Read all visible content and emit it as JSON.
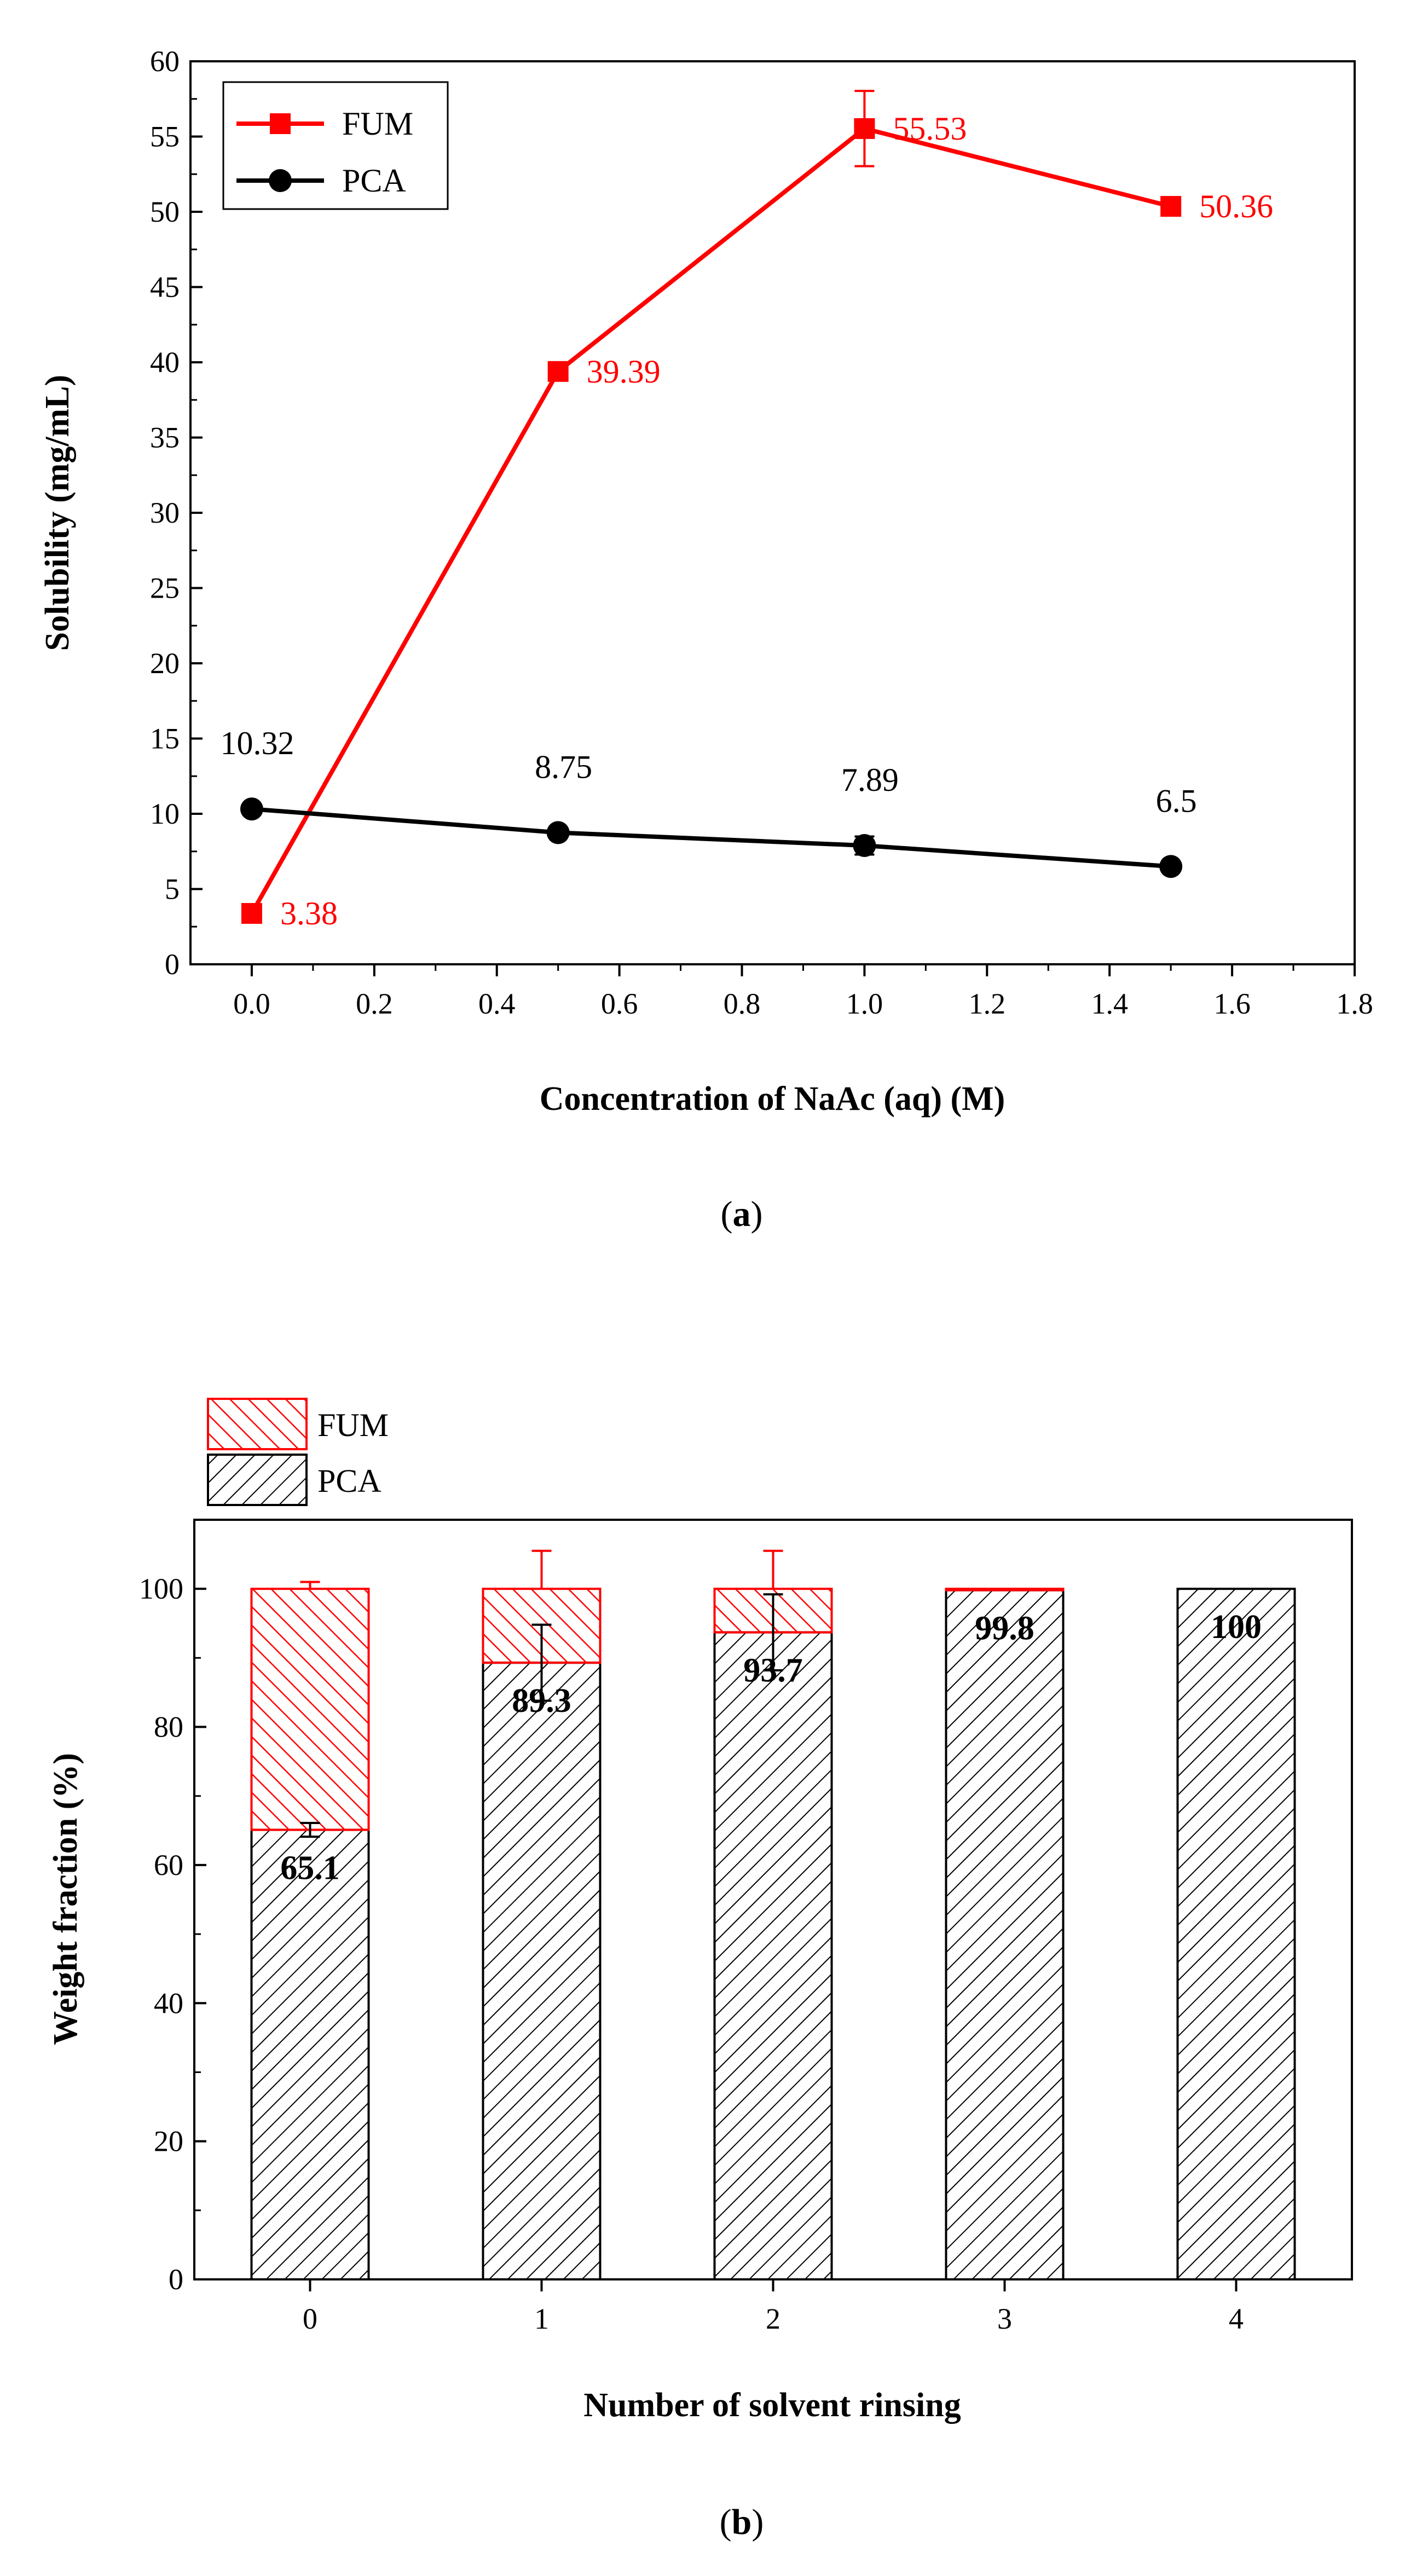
{
  "colors": {
    "fum": "#ff0000",
    "pca": "#000000",
    "axis": "#000000"
  },
  "chart_data": [
    {
      "type": "line",
      "panel": "a",
      "caption_letter": "a",
      "xlabel": "Concentration of NaAc (aq) (M)",
      "ylabel": "Solubility (mg/mL)",
      "xlim": [
        -0.1,
        1.8
      ],
      "ylim": [
        0,
        60
      ],
      "xticks": [
        0.0,
        0.2,
        0.4,
        0.6,
        0.8,
        1.0,
        1.2,
        1.4,
        1.6,
        1.8
      ],
      "yticks": [
        0,
        5,
        10,
        15,
        20,
        25,
        30,
        35,
        40,
        45,
        50,
        55,
        60
      ],
      "legend_position": "top-left",
      "series": [
        {
          "name": "FUM",
          "marker": "square",
          "x": [
            0.0,
            0.5,
            1.0,
            1.5
          ],
          "y": [
            3.38,
            39.39,
            55.53,
            50.36
          ],
          "labels": [
            "3.38",
            "39.39",
            "55.53",
            "50.36"
          ],
          "error": [
            0,
            0,
            2.5,
            0
          ]
        },
        {
          "name": "PCA",
          "marker": "circle",
          "x": [
            0.0,
            0.5,
            1.0,
            1.5
          ],
          "y": [
            10.32,
            8.75,
            7.89,
            6.5
          ],
          "labels": [
            "10.32",
            "8.75",
            "7.89",
            "6.5"
          ],
          "error": [
            0,
            0,
            0.6,
            0
          ]
        }
      ]
    },
    {
      "type": "bar",
      "stacked": true,
      "panel": "b",
      "caption_letter": "b",
      "xlabel": "Number of solvent rinsing",
      "ylabel": "Weight fraction (%)",
      "categories": [
        "0",
        "1",
        "2",
        "3",
        "4"
      ],
      "ylim": [
        0,
        110
      ],
      "yticks": [
        0,
        20,
        40,
        60,
        80,
        100
      ],
      "legend_position": "top-left, outside",
      "series": [
        {
          "name": "PCA",
          "values": [
            65.1,
            89.3,
            93.7,
            99.8,
            100
          ],
          "labels": [
            "65.1",
            "89.3",
            "93.7",
            "99.8",
            "100"
          ],
          "error": [
            1.0,
            5.5,
            5.5,
            0,
            0
          ]
        },
        {
          "name": "FUM",
          "values": [
            34.9,
            10.7,
            6.3,
            0.2,
            0
          ],
          "error": [
            1.0,
            5.5,
            5.5,
            0,
            0
          ]
        }
      ]
    }
  ]
}
